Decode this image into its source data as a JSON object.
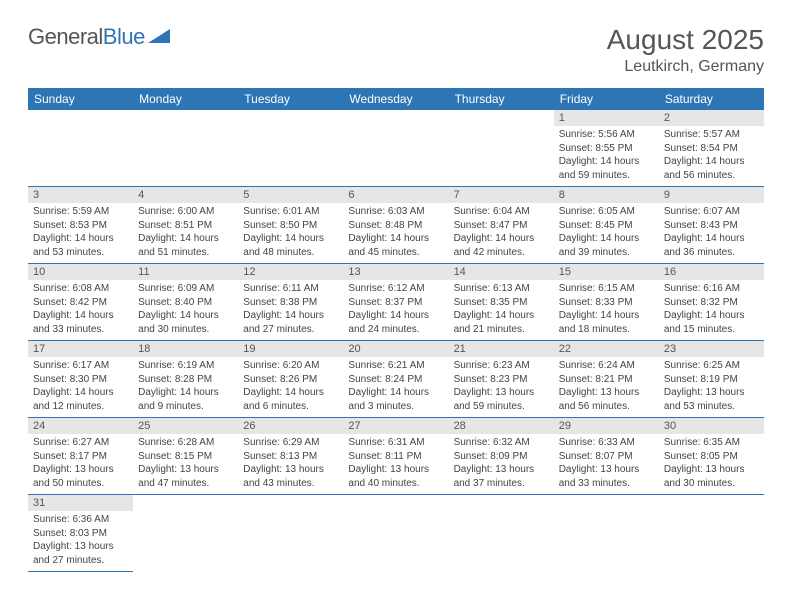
{
  "logo": {
    "text1": "General",
    "text2": "Blue",
    "color1": "#666666",
    "color2": "#2e75b6"
  },
  "title": "August 2025",
  "location": "Leutkirch, Germany",
  "headerBg": "#2e75b6",
  "dayBg": "#e6e6e6",
  "borderColor": "#2e75b6",
  "weekdays": [
    "Sunday",
    "Monday",
    "Tuesday",
    "Wednesday",
    "Thursday",
    "Friday",
    "Saturday"
  ],
  "weeks": [
    [
      null,
      null,
      null,
      null,
      null,
      {
        "n": "1",
        "sr": "5:56 AM",
        "ss": "8:55 PM",
        "dl": "14 hours and 59 minutes."
      },
      {
        "n": "2",
        "sr": "5:57 AM",
        "ss": "8:54 PM",
        "dl": "14 hours and 56 minutes."
      }
    ],
    [
      {
        "n": "3",
        "sr": "5:59 AM",
        "ss": "8:53 PM",
        "dl": "14 hours and 53 minutes."
      },
      {
        "n": "4",
        "sr": "6:00 AM",
        "ss": "8:51 PM",
        "dl": "14 hours and 51 minutes."
      },
      {
        "n": "5",
        "sr": "6:01 AM",
        "ss": "8:50 PM",
        "dl": "14 hours and 48 minutes."
      },
      {
        "n": "6",
        "sr": "6:03 AM",
        "ss": "8:48 PM",
        "dl": "14 hours and 45 minutes."
      },
      {
        "n": "7",
        "sr": "6:04 AM",
        "ss": "8:47 PM",
        "dl": "14 hours and 42 minutes."
      },
      {
        "n": "8",
        "sr": "6:05 AM",
        "ss": "8:45 PM",
        "dl": "14 hours and 39 minutes."
      },
      {
        "n": "9",
        "sr": "6:07 AM",
        "ss": "8:43 PM",
        "dl": "14 hours and 36 minutes."
      }
    ],
    [
      {
        "n": "10",
        "sr": "6:08 AM",
        "ss": "8:42 PM",
        "dl": "14 hours and 33 minutes."
      },
      {
        "n": "11",
        "sr": "6:09 AM",
        "ss": "8:40 PM",
        "dl": "14 hours and 30 minutes."
      },
      {
        "n": "12",
        "sr": "6:11 AM",
        "ss": "8:38 PM",
        "dl": "14 hours and 27 minutes."
      },
      {
        "n": "13",
        "sr": "6:12 AM",
        "ss": "8:37 PM",
        "dl": "14 hours and 24 minutes."
      },
      {
        "n": "14",
        "sr": "6:13 AM",
        "ss": "8:35 PM",
        "dl": "14 hours and 21 minutes."
      },
      {
        "n": "15",
        "sr": "6:15 AM",
        "ss": "8:33 PM",
        "dl": "14 hours and 18 minutes."
      },
      {
        "n": "16",
        "sr": "6:16 AM",
        "ss": "8:32 PM",
        "dl": "14 hours and 15 minutes."
      }
    ],
    [
      {
        "n": "17",
        "sr": "6:17 AM",
        "ss": "8:30 PM",
        "dl": "14 hours and 12 minutes."
      },
      {
        "n": "18",
        "sr": "6:19 AM",
        "ss": "8:28 PM",
        "dl": "14 hours and 9 minutes."
      },
      {
        "n": "19",
        "sr": "6:20 AM",
        "ss": "8:26 PM",
        "dl": "14 hours and 6 minutes."
      },
      {
        "n": "20",
        "sr": "6:21 AM",
        "ss": "8:24 PM",
        "dl": "14 hours and 3 minutes."
      },
      {
        "n": "21",
        "sr": "6:23 AM",
        "ss": "8:23 PM",
        "dl": "13 hours and 59 minutes."
      },
      {
        "n": "22",
        "sr": "6:24 AM",
        "ss": "8:21 PM",
        "dl": "13 hours and 56 minutes."
      },
      {
        "n": "23",
        "sr": "6:25 AM",
        "ss": "8:19 PM",
        "dl": "13 hours and 53 minutes."
      }
    ],
    [
      {
        "n": "24",
        "sr": "6:27 AM",
        "ss": "8:17 PM",
        "dl": "13 hours and 50 minutes."
      },
      {
        "n": "25",
        "sr": "6:28 AM",
        "ss": "8:15 PM",
        "dl": "13 hours and 47 minutes."
      },
      {
        "n": "26",
        "sr": "6:29 AM",
        "ss": "8:13 PM",
        "dl": "13 hours and 43 minutes."
      },
      {
        "n": "27",
        "sr": "6:31 AM",
        "ss": "8:11 PM",
        "dl": "13 hours and 40 minutes."
      },
      {
        "n": "28",
        "sr": "6:32 AM",
        "ss": "8:09 PM",
        "dl": "13 hours and 37 minutes."
      },
      {
        "n": "29",
        "sr": "6:33 AM",
        "ss": "8:07 PM",
        "dl": "13 hours and 33 minutes."
      },
      {
        "n": "30",
        "sr": "6:35 AM",
        "ss": "8:05 PM",
        "dl": "13 hours and 30 minutes."
      }
    ],
    [
      {
        "n": "31",
        "sr": "6:36 AM",
        "ss": "8:03 PM",
        "dl": "13 hours and 27 minutes."
      },
      null,
      null,
      null,
      null,
      null,
      null
    ]
  ]
}
